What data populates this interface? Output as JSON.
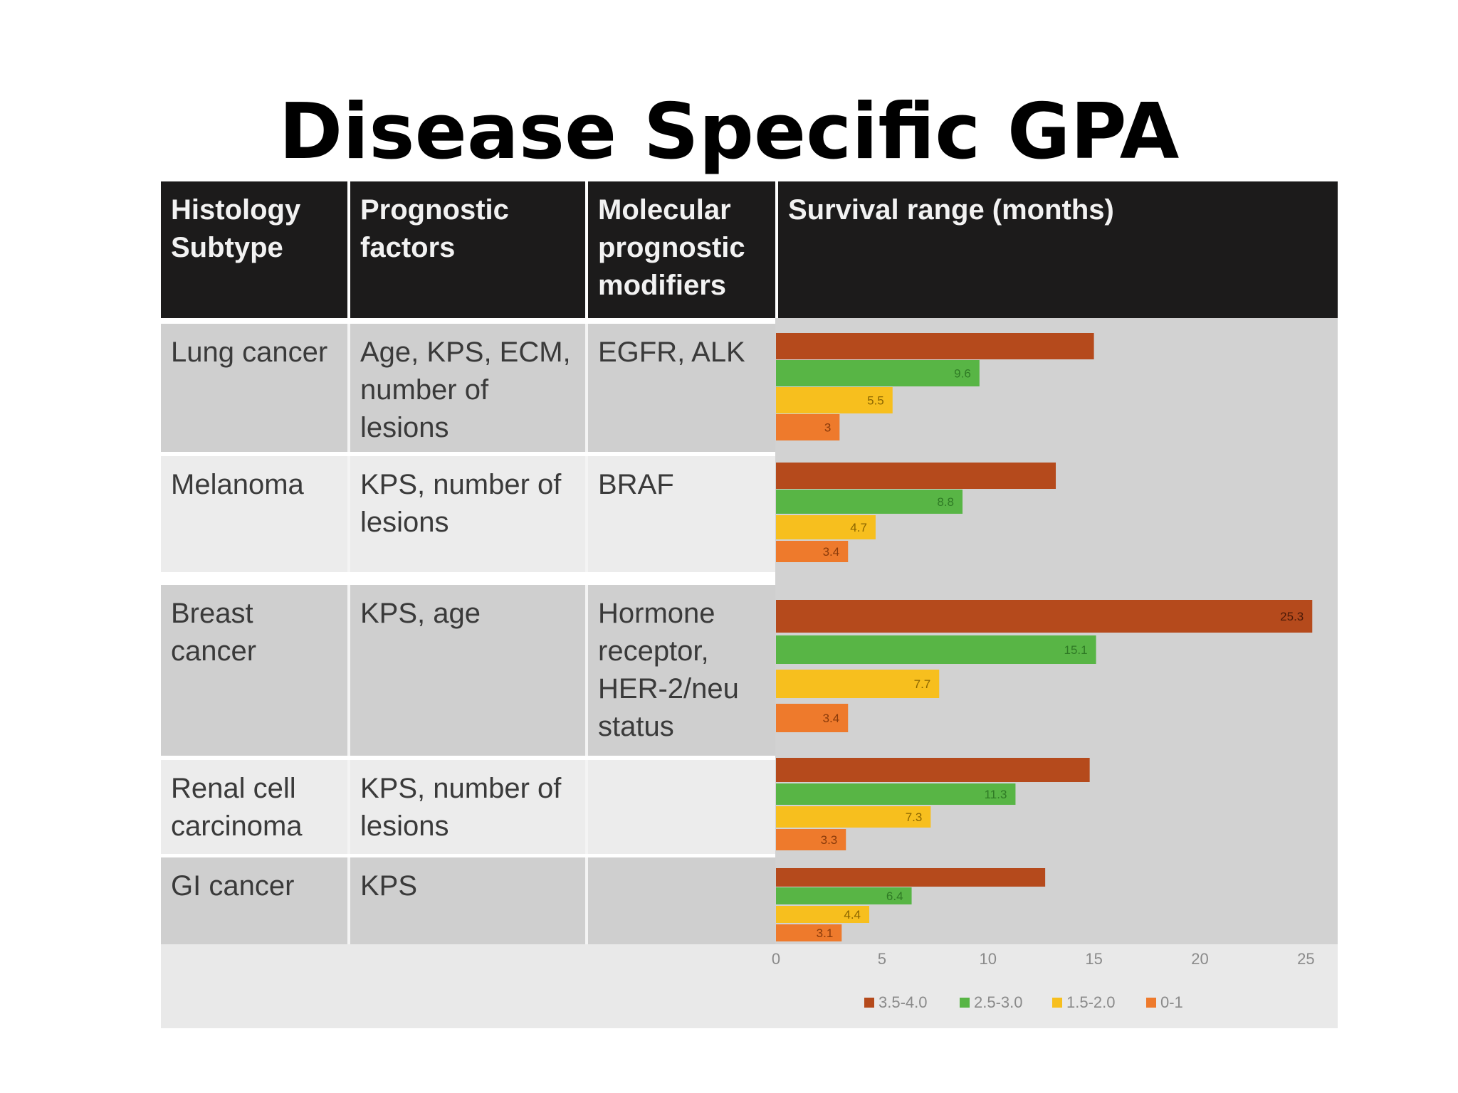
{
  "title": "Disease Specific GPA",
  "table": {
    "headers": [
      "Histology Subtype",
      "Prognostic factors",
      "Molecular prognostic modifiers",
      "Survival range (months)"
    ],
    "header_lines": [
      [
        "Histology",
        "Subtype"
      ],
      [
        "Prognostic",
        "factors"
      ],
      [
        "Molecular",
        "prognostic",
        "modifiers"
      ],
      [
        "Survival range (months)"
      ]
    ],
    "rows": [
      {
        "histology": [
          "Lung cancer"
        ],
        "factors": [
          "Age, KPS, ECM,",
          "number of",
          "lesions"
        ],
        "modifiers": [
          "EGFR, ALK"
        ]
      },
      {
        "histology": [
          "Melanoma"
        ],
        "factors": [
          "KPS, number of",
          "lesions"
        ],
        "modifiers": [
          "BRAF"
        ]
      },
      {
        "histology": [
          "Breast",
          "cancer"
        ],
        "factors": [
          "KPS, age"
        ],
        "modifiers": [
          "Hormone",
          "receptor,",
          "HER-2/neu",
          "status"
        ]
      },
      {
        "histology": [
          "Renal cell",
          "carcinoma"
        ],
        "factors": [
          "KPS, number of",
          "lesions"
        ],
        "modifiers": []
      },
      {
        "histology": [
          "GI cancer"
        ],
        "factors": [
          "KPS"
        ],
        "modifiers": []
      }
    ]
  },
  "colors": {
    "s1": "#b54a1c",
    "s2": "#58b545",
    "s3": "#f7bf1e",
    "s4": "#ee7a2c"
  },
  "chart_data": {
    "type": "bar",
    "orientation": "horizontal",
    "categories": [
      "Lung cancer",
      "Melanoma",
      "Breast cancer",
      "Renal cell carcinoma",
      "GI cancer"
    ],
    "series": [
      {
        "name": "3.5-4.0",
        "values": [
          15,
          13.2,
          25.3,
          14.8,
          12.7
        ],
        "labels": [
          "",
          "",
          "25.3",
          "",
          ""
        ]
      },
      {
        "name": "2.5-3.0",
        "values": [
          9.6,
          8.8,
          15.1,
          11.3,
          6.4
        ],
        "labels": [
          "9.6",
          "8.8",
          "15.1",
          "11.3",
          "6.4"
        ]
      },
      {
        "name": "1.5-2.0",
        "values": [
          5.5,
          4.7,
          7.7,
          7.3,
          4.4
        ],
        "labels": [
          "5.5",
          "4.7",
          "7.7",
          "7.3",
          "4.4"
        ]
      },
      {
        "name": "0-1",
        "values": [
          3,
          3.4,
          3.4,
          3.3,
          3.1
        ],
        "labels": [
          "3",
          "3.4",
          "3.4",
          "3.3",
          "3.1"
        ]
      }
    ],
    "xticks": [
      "0",
      "5",
      "10",
      "15",
      "20",
      "25"
    ],
    "xlim": [
      0,
      26.5
    ],
    "legend": "bottom",
    "grid": false
  }
}
